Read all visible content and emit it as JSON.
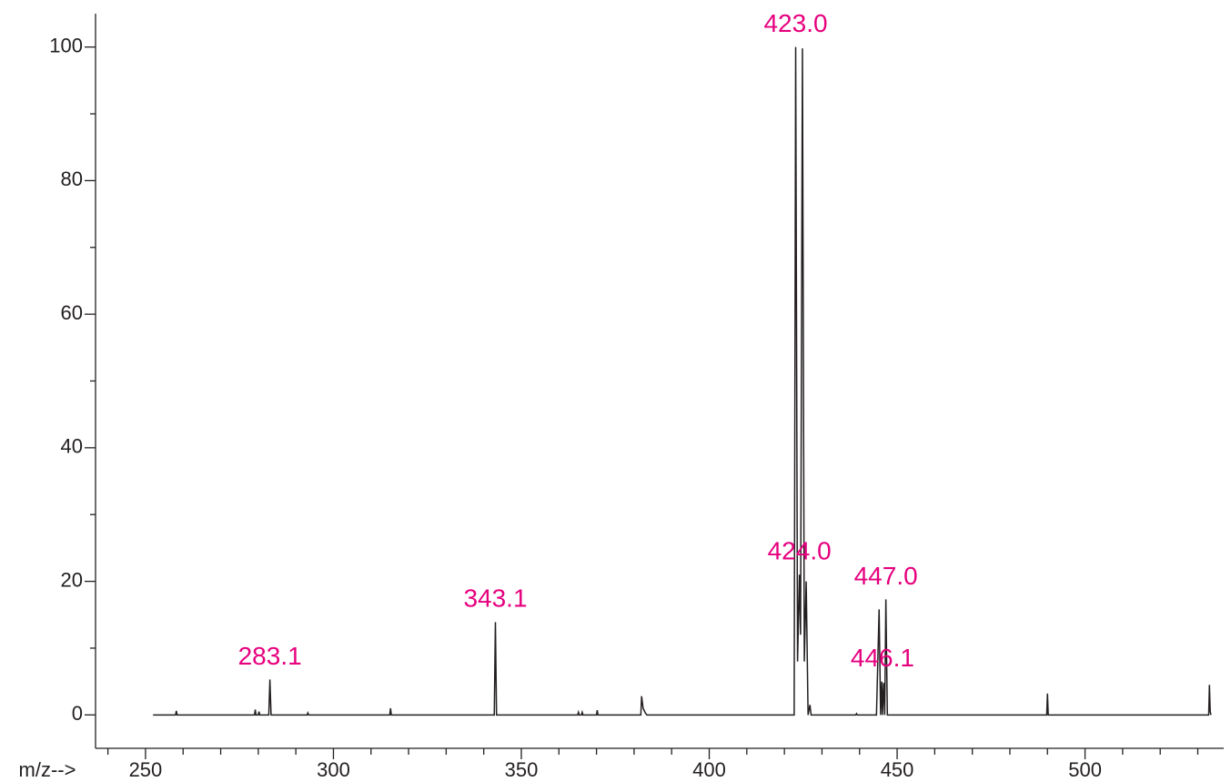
{
  "chart_data": {
    "type": "line",
    "xlabel": "m/z-->",
    "color": "#231f20",
    "annotation_color": "#e6007e",
    "xlim": [
      236.7,
      536.9
    ],
    "ylim": [
      -5,
      105
    ],
    "xticks": [
      250,
      300,
      350,
      400,
      450,
      500
    ],
    "xticks_minor": [
      240,
      260,
      270,
      280,
      290,
      310,
      320,
      330,
      340,
      360,
      370,
      380,
      390,
      410,
      420,
      430,
      440,
      460,
      470,
      480,
      490,
      510,
      520,
      530
    ],
    "yticks": [
      0,
      20,
      40,
      60,
      80,
      100
    ],
    "yticks_minor": [
      10,
      30,
      50,
      70,
      90
    ],
    "x": [
      252,
      258,
      258.2,
      258.4,
      279,
      279.2,
      279.4,
      280,
      280.2,
      280.4,
      282.8,
      283.1,
      283.4,
      293,
      293.2,
      293.4,
      315,
      315.2,
      315.4,
      342.8,
      343.1,
      343.4,
      365,
      365.2,
      365.4,
      366,
      366.2,
      366.4,
      370,
      370.2,
      370.4,
      381.8,
      382,
      382.4,
      383,
      383.4,
      422.6,
      423,
      423.5,
      424,
      424.3,
      424.8,
      425.3,
      425.8,
      426.3,
      426.8,
      427.1,
      439,
      439.2,
      439.4,
      444.5,
      445.2,
      445.6,
      445.9,
      446.1,
      446.4,
      446.7,
      447,
      447.4,
      489.8,
      490,
      490.2,
      532.9,
      533.1,
      533.3,
      533.5
    ],
    "values": [
      0,
      0,
      0.6,
      0,
      0,
      0.8,
      0,
      0,
      0.5,
      0,
      0,
      5.3,
      0,
      0,
      0.3,
      0,
      0,
      1,
      0,
      0,
      13.9,
      0,
      0,
      0.4,
      0,
      0,
      0.4,
      0,
      0,
      0.7,
      0,
      0,
      2.8,
      1,
      0.3,
      0,
      0,
      100,
      8,
      21,
      12,
      99.8,
      8,
      20,
      0,
      1.5,
      0,
      0,
      0.2,
      0,
      0,
      15.8,
      0,
      5,
      0,
      4.8,
      0,
      17.3,
      0,
      0,
      3.2,
      0,
      0,
      4.5,
      0.5,
      0
    ],
    "annotations": [
      {
        "text": "283.1",
        "x": 283.1,
        "y": 5.3
      },
      {
        "text": "343.1",
        "x": 343.1,
        "y": 13.9
      },
      {
        "text": "423.0",
        "x": 423,
        "y": 100
      },
      {
        "text": "424.0",
        "x": 424,
        "y": 21
      },
      {
        "text": "447.0",
        "x": 447,
        "y": 17.3
      },
      {
        "text": "446.1",
        "x": 446.1,
        "y": 5
      }
    ]
  }
}
